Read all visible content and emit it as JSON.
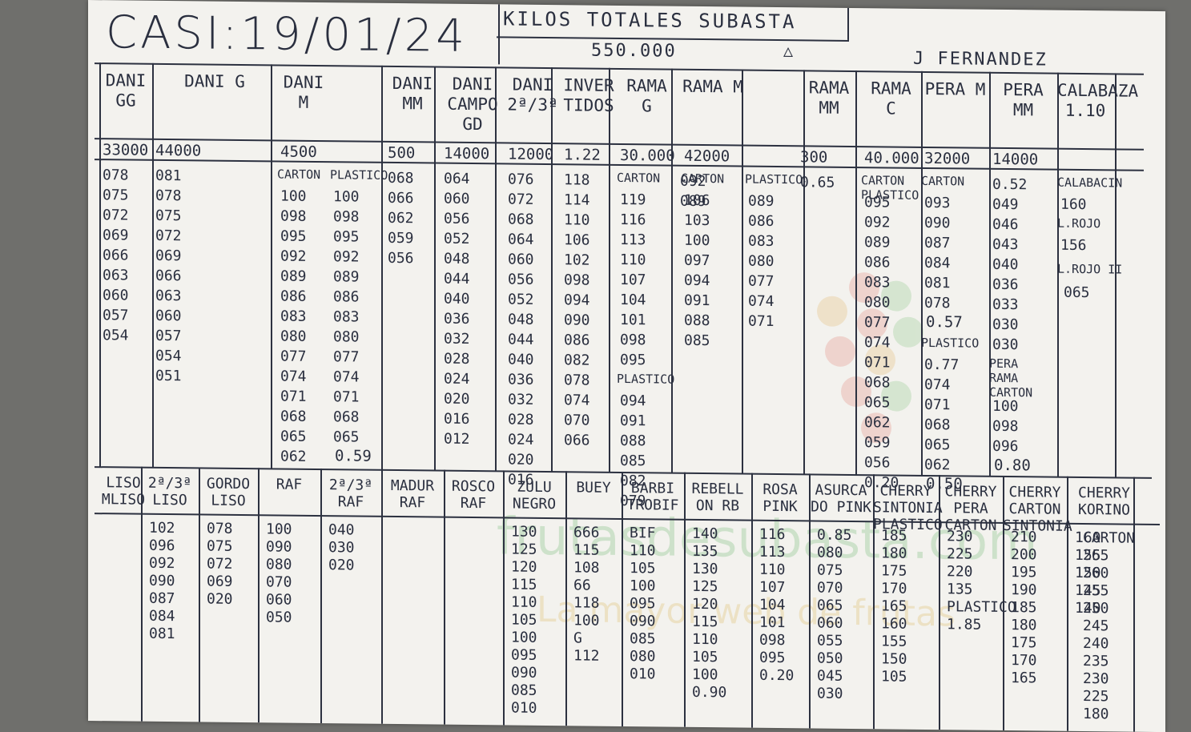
{
  "title": "CASI:19/01/24",
  "subtitle": "KILOS TOTALES SUBASTA",
  "total_kilos": "550.000",
  "signature": "J FERNANDEZ",
  "watermark": "frutasdesubasta.com",
  "watermark_slogan": "La mayor web de frutas",
  "top_columns": [
    {
      "header": "DANI GG",
      "total": "33000",
      "values": [
        "078",
        "075",
        "072",
        "069",
        "066",
        "063",
        "060",
        "057",
        "054"
      ]
    },
    {
      "header": "DANI G",
      "total": "44000",
      "values": [
        "081",
        "078",
        "075",
        "072",
        "069",
        "066",
        "063",
        "060",
        "057",
        "054",
        "051"
      ]
    },
    {
      "header": "DANI M",
      "total": "4500",
      "sub": "CARTON",
      "values": [
        "100",
        "098",
        "095",
        "092",
        "089",
        "086",
        "083",
        "080",
        "077",
        "074",
        "071",
        "068",
        "065",
        "062"
      ]
    },
    {
      "header": "",
      "total": "",
      "sub": "PLASTICO",
      "values": [
        "100",
        "098",
        "095",
        "092",
        "089",
        "086",
        "083",
        "080",
        "077",
        "074",
        "071",
        "068",
        "065"
      ],
      "extra": "0.59"
    },
    {
      "header": "DANI MM",
      "total": "500",
      "values": [
        "068",
        "066",
        "062",
        "059",
        "056"
      ]
    },
    {
      "header": "DANI CAMPO GD",
      "total": "14000",
      "values": [
        "064",
        "060",
        "056",
        "052",
        "048",
        "044",
        "040",
        "036",
        "032",
        "028",
        "024",
        "020",
        "016",
        "012"
      ]
    },
    {
      "header": "DANI 2ª/3ª",
      "total": "12000",
      "values": [
        "076",
        "072",
        "068",
        "064",
        "060",
        "056",
        "052",
        "048",
        "044",
        "040",
        "036",
        "032",
        "028",
        "024",
        "020",
        "016"
      ]
    },
    {
      "header": "INVER TIDOS",
      "total": "1.22",
      "values": [
        "118",
        "114",
        "110",
        "106",
        "102",
        "098",
        "094",
        "090",
        "086",
        "082",
        "078",
        "074",
        "070",
        "066"
      ]
    },
    {
      "header": "RAMA G",
      "total": "30.000",
      "sub": "CARTON",
      "values": [
        "119",
        "116",
        "113",
        "110",
        "107",
        "104",
        "101",
        "098",
        "095"
      ],
      "sub2": "PLASTICO",
      "values2": [
        "094",
        "091",
        "088",
        "085",
        "082",
        "079"
      ]
    },
    {
      "header": "",
      "total": "",
      "values": [
        "092",
        "089"
      ]
    },
    {
      "header": "RAMA M",
      "total": "42000",
      "sub": "CARTON",
      "values": [
        "106",
        "103",
        "100",
        "097",
        "094",
        "091",
        "088",
        "085"
      ]
    },
    {
      "header": "",
      "total": "",
      "sub": "PLASTICO",
      "values": [
        "089",
        "086",
        "083",
        "080",
        "077",
        "074",
        "071"
      ]
    },
    {
      "header": "RAMA MM",
      "total": "300",
      "values": [
        "0.65"
      ]
    },
    {
      "header": "RAMA C",
      "total": "40.000",
      "sub": "CARTON PLASTICO",
      "values": [
        "095",
        "092",
        "089",
        "086",
        "083",
        "080",
        "077",
        "074",
        "071",
        "068",
        "065",
        "062",
        "059",
        "056",
        "0.20"
      ]
    },
    {
      "header": "PERA M",
      "total": "32000",
      "sub": "CARTON",
      "values": [
        "093",
        "090",
        "087",
        "084",
        "081",
        "078"
      ],
      "extra": "0.57",
      "sub2": "PLASTICO",
      "values2": [
        "0.77",
        "074",
        "071",
        "068",
        "065",
        "062"
      ],
      "extra2": "0.50"
    },
    {
      "header": "PERA MM",
      "total": "14000",
      "values": [
        "0.52",
        "049",
        "046",
        "043",
        "040",
        "036",
        "033",
        "030",
        "030"
      ],
      "sub2": "PERA RAMA CARTON",
      "values2": [
        "100",
        "098",
        "096"
      ],
      "extra2": "0.80"
    },
    {
      "header": "CALABAZA 1.10",
      "total": "",
      "sub": "CALABACIN",
      "values": [
        "160"
      ],
      "sub2": "L.ROJO",
      "values2": [
        "156"
      ],
      "sub3": "L.ROJO II",
      "values3": [
        "065"
      ]
    }
  ],
  "bottom_columns": [
    {
      "header": "LISO MLISO",
      "values": []
    },
    {
      "header": "2ª/3ª LISO",
      "values": [
        "102",
        "096",
        "092",
        "090",
        "087",
        "084",
        "081"
      ]
    },
    {
      "header": "GORDO LISO",
      "values": [
        "078",
        "075",
        "072",
        "069",
        "020"
      ]
    },
    {
      "header": "RAF",
      "values": [
        "100",
        "090",
        "080",
        "070",
        "060",
        "050"
      ]
    },
    {
      "header": "2ª/3ª RAF",
      "values": [
        "040",
        "030",
        "020"
      ]
    },
    {
      "header": "MADUR RAF",
      "values": []
    },
    {
      "header": "ROSCO RAF",
      "values": []
    },
    {
      "header": "ZULU NEGRO",
      "values": [
        "130",
        "125",
        "120",
        "115",
        "110",
        "105",
        "100",
        "095",
        "090",
        "085",
        "010"
      ]
    },
    {
      "header": "BUEY",
      "values": [
        "666",
        "115",
        "108",
        "66",
        "118",
        "100",
        "G",
        "112"
      ]
    },
    {
      "header": "BARBI TROBIF",
      "values": [
        "BIF",
        "110",
        "105",
        "100",
        "095",
        "090",
        "085",
        "080",
        "010"
      ]
    },
    {
      "header": "REBELL ON RB",
      "values": [
        "140",
        "135",
        "130",
        "125",
        "120",
        "115",
        "110",
        "105",
        "100",
        "0.90"
      ]
    },
    {
      "header": "ROSA PINK",
      "values": [
        "116",
        "113",
        "110",
        "107",
        "104",
        "101",
        "098",
        "095",
        "0.20"
      ]
    },
    {
      "header": "ASURCA DO PINK",
      "values": [
        "0.85",
        "080",
        "075",
        "070",
        "065",
        "060",
        "055",
        "050",
        "045",
        "030"
      ]
    },
    {
      "header": "CHERRY SINTONIA PLASTICO",
      "values": [
        "185",
        "180",
        "175",
        "170",
        "165",
        "160",
        "155",
        "150",
        "105"
      ]
    },
    {
      "header": "CHERRY PERA CARTON",
      "values": [
        "230",
        "225",
        "220",
        "135",
        "PLASTICO",
        "1.85"
      ]
    },
    {
      "header": "CHERRY CARTON SINTONIA",
      "values": [
        "210",
        "200",
        "195",
        "190",
        "185",
        "180",
        "175",
        "170",
        "165"
      ]
    },
    {
      "header": "",
      "values": [
        "160",
        "155",
        "150",
        "145",
        "140"
      ]
    },
    {
      "header": "CHERRY KORINO",
      "values": [
        "CARTON",
        "265",
        "260",
        "255",
        "250",
        "245",
        "240",
        "235",
        "230",
        "225",
        "180"
      ]
    }
  ]
}
